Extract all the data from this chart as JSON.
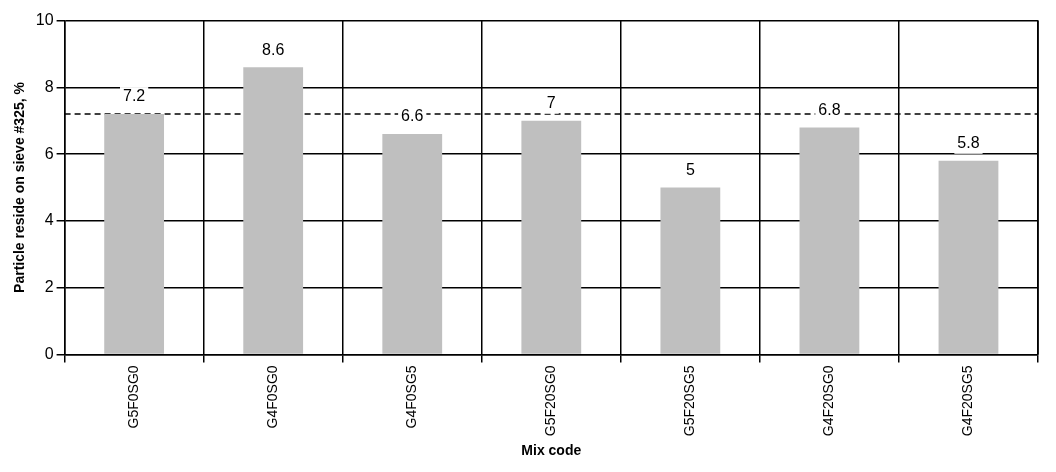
{
  "chart_data": {
    "type": "bar",
    "xlabel": "Mix code",
    "ylabel": "Particle reside on sieve #325, %",
    "categories": [
      "G5F0SG0",
      "G4F0SG0",
      "G4F0SG5",
      "G5F20SG0",
      "G5F20SG5",
      "G4F20SG0",
      "G4F20SG5"
    ],
    "values": [
      7.2,
      8.6,
      6.6,
      7,
      5,
      6.8,
      5.8
    ],
    "color": "#bfbfbf",
    "ylim": [
      0,
      10
    ],
    "yticks": [
      0,
      2,
      4,
      6,
      8,
      10
    ],
    "grid": true,
    "data_labels": true,
    "ref_lines": [
      {
        "axis": "y",
        "value": 7.2,
        "color": "#000000",
        "line_style": "dashed"
      }
    ]
  }
}
